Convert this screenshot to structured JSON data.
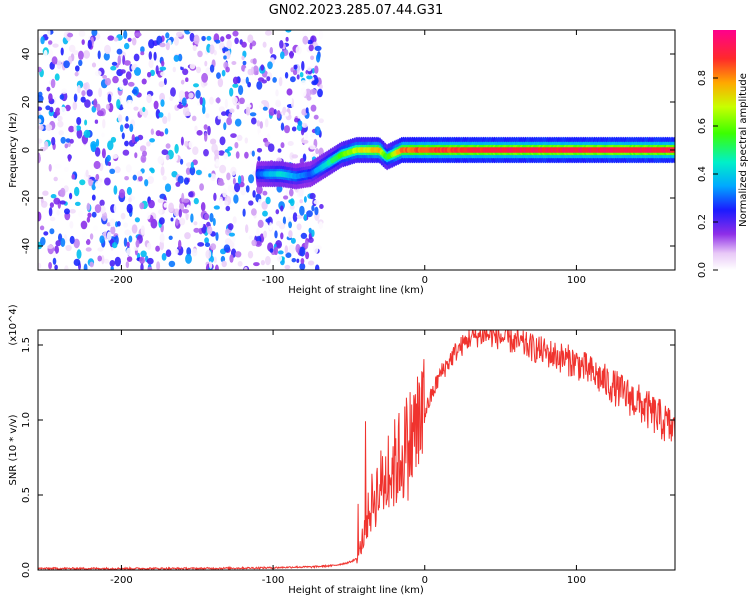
{
  "title": "GN02.2023.285.07.44.G31",
  "colorbar": {
    "label": "Normalized spectral amplitude",
    "ticks": [
      "0.0",
      "0.2",
      "0.4",
      "0.6",
      "0.8"
    ]
  },
  "chart_data": [
    {
      "type": "heatmap",
      "title": "GN02.2023.285.07.44.G31",
      "xlabel": "Height of straight line (km)",
      "ylabel": "Frequency (Hz)",
      "xlim": [
        -255,
        165
      ],
      "ylim": [
        -50,
        50
      ],
      "xticks": [
        "-200",
        "-100",
        "0",
        "100"
      ],
      "yticks": [
        "-40",
        "-20",
        "0",
        "20",
        "40"
      ],
      "colorbar": {
        "label": "Normalized spectral amplitude",
        "range": [
          0,
          1
        ],
        "ticks": [
          "0.0",
          "0.2",
          "0.4",
          "0.6",
          "0.8"
        ]
      },
      "ridge": [
        {
          "x": -110,
          "y": -10,
          "amp": 0.3
        },
        {
          "x": -95,
          "y": -10,
          "amp": 0.45
        },
        {
          "x": -85,
          "y": -11,
          "amp": 0.35
        },
        {
          "x": -75,
          "y": -10,
          "amp": 0.3
        },
        {
          "x": -65,
          "y": -6,
          "amp": 0.45
        },
        {
          "x": -55,
          "y": -2,
          "amp": 0.6
        },
        {
          "x": -45,
          "y": 0,
          "amp": 0.7
        },
        {
          "x": -30,
          "y": 0,
          "amp": 0.8
        },
        {
          "x": -25,
          "y": -3,
          "amp": 0.55
        },
        {
          "x": -15,
          "y": 0,
          "amp": 0.85
        },
        {
          "x": 0,
          "y": 0,
          "amp": 0.9
        },
        {
          "x": 50,
          "y": 0,
          "amp": 0.95
        },
        {
          "x": 100,
          "y": 0,
          "amp": 0.95
        },
        {
          "x": 165,
          "y": 0,
          "amp": 0.95
        }
      ],
      "noise_region": {
        "x": [
          -255,
          -68
        ],
        "y": [
          -50,
          50
        ],
        "amp": [
          0,
          0.4
        ]
      }
    },
    {
      "type": "line",
      "xlabel": "Height of straight line (km)",
      "ylabel": "SNR (10 * v/v)",
      "yscale_label": "(x10^4)",
      "xlim": [
        -255,
        165
      ],
      "ylim": [
        0,
        1.6
      ],
      "xticks": [
        "-200",
        "-100",
        "0",
        "100"
      ],
      "yticks": [
        "0.0",
        "0.5",
        "1.0",
        "1.5"
      ],
      "series": [
        {
          "x": [
            -255,
            -200,
            -150,
            -100,
            -85,
            -75,
            -60,
            -50,
            -44,
            -40,
            -35,
            -30,
            -25,
            -20,
            -10,
            0,
            10,
            20,
            30,
            40,
            50,
            60,
            80,
            100,
            120,
            140,
            165
          ],
          "y": [
            0.01,
            0.01,
            0.01,
            0.015,
            0.02,
            0.02,
            0.03,
            0.05,
            0.08,
            0.25,
            0.45,
            0.55,
            0.62,
            0.7,
            0.85,
            1.05,
            1.3,
            1.45,
            1.55,
            1.57,
            1.55,
            1.52,
            1.45,
            1.38,
            1.25,
            1.12,
            0.93
          ],
          "color": "#f0332e"
        }
      ]
    }
  ]
}
